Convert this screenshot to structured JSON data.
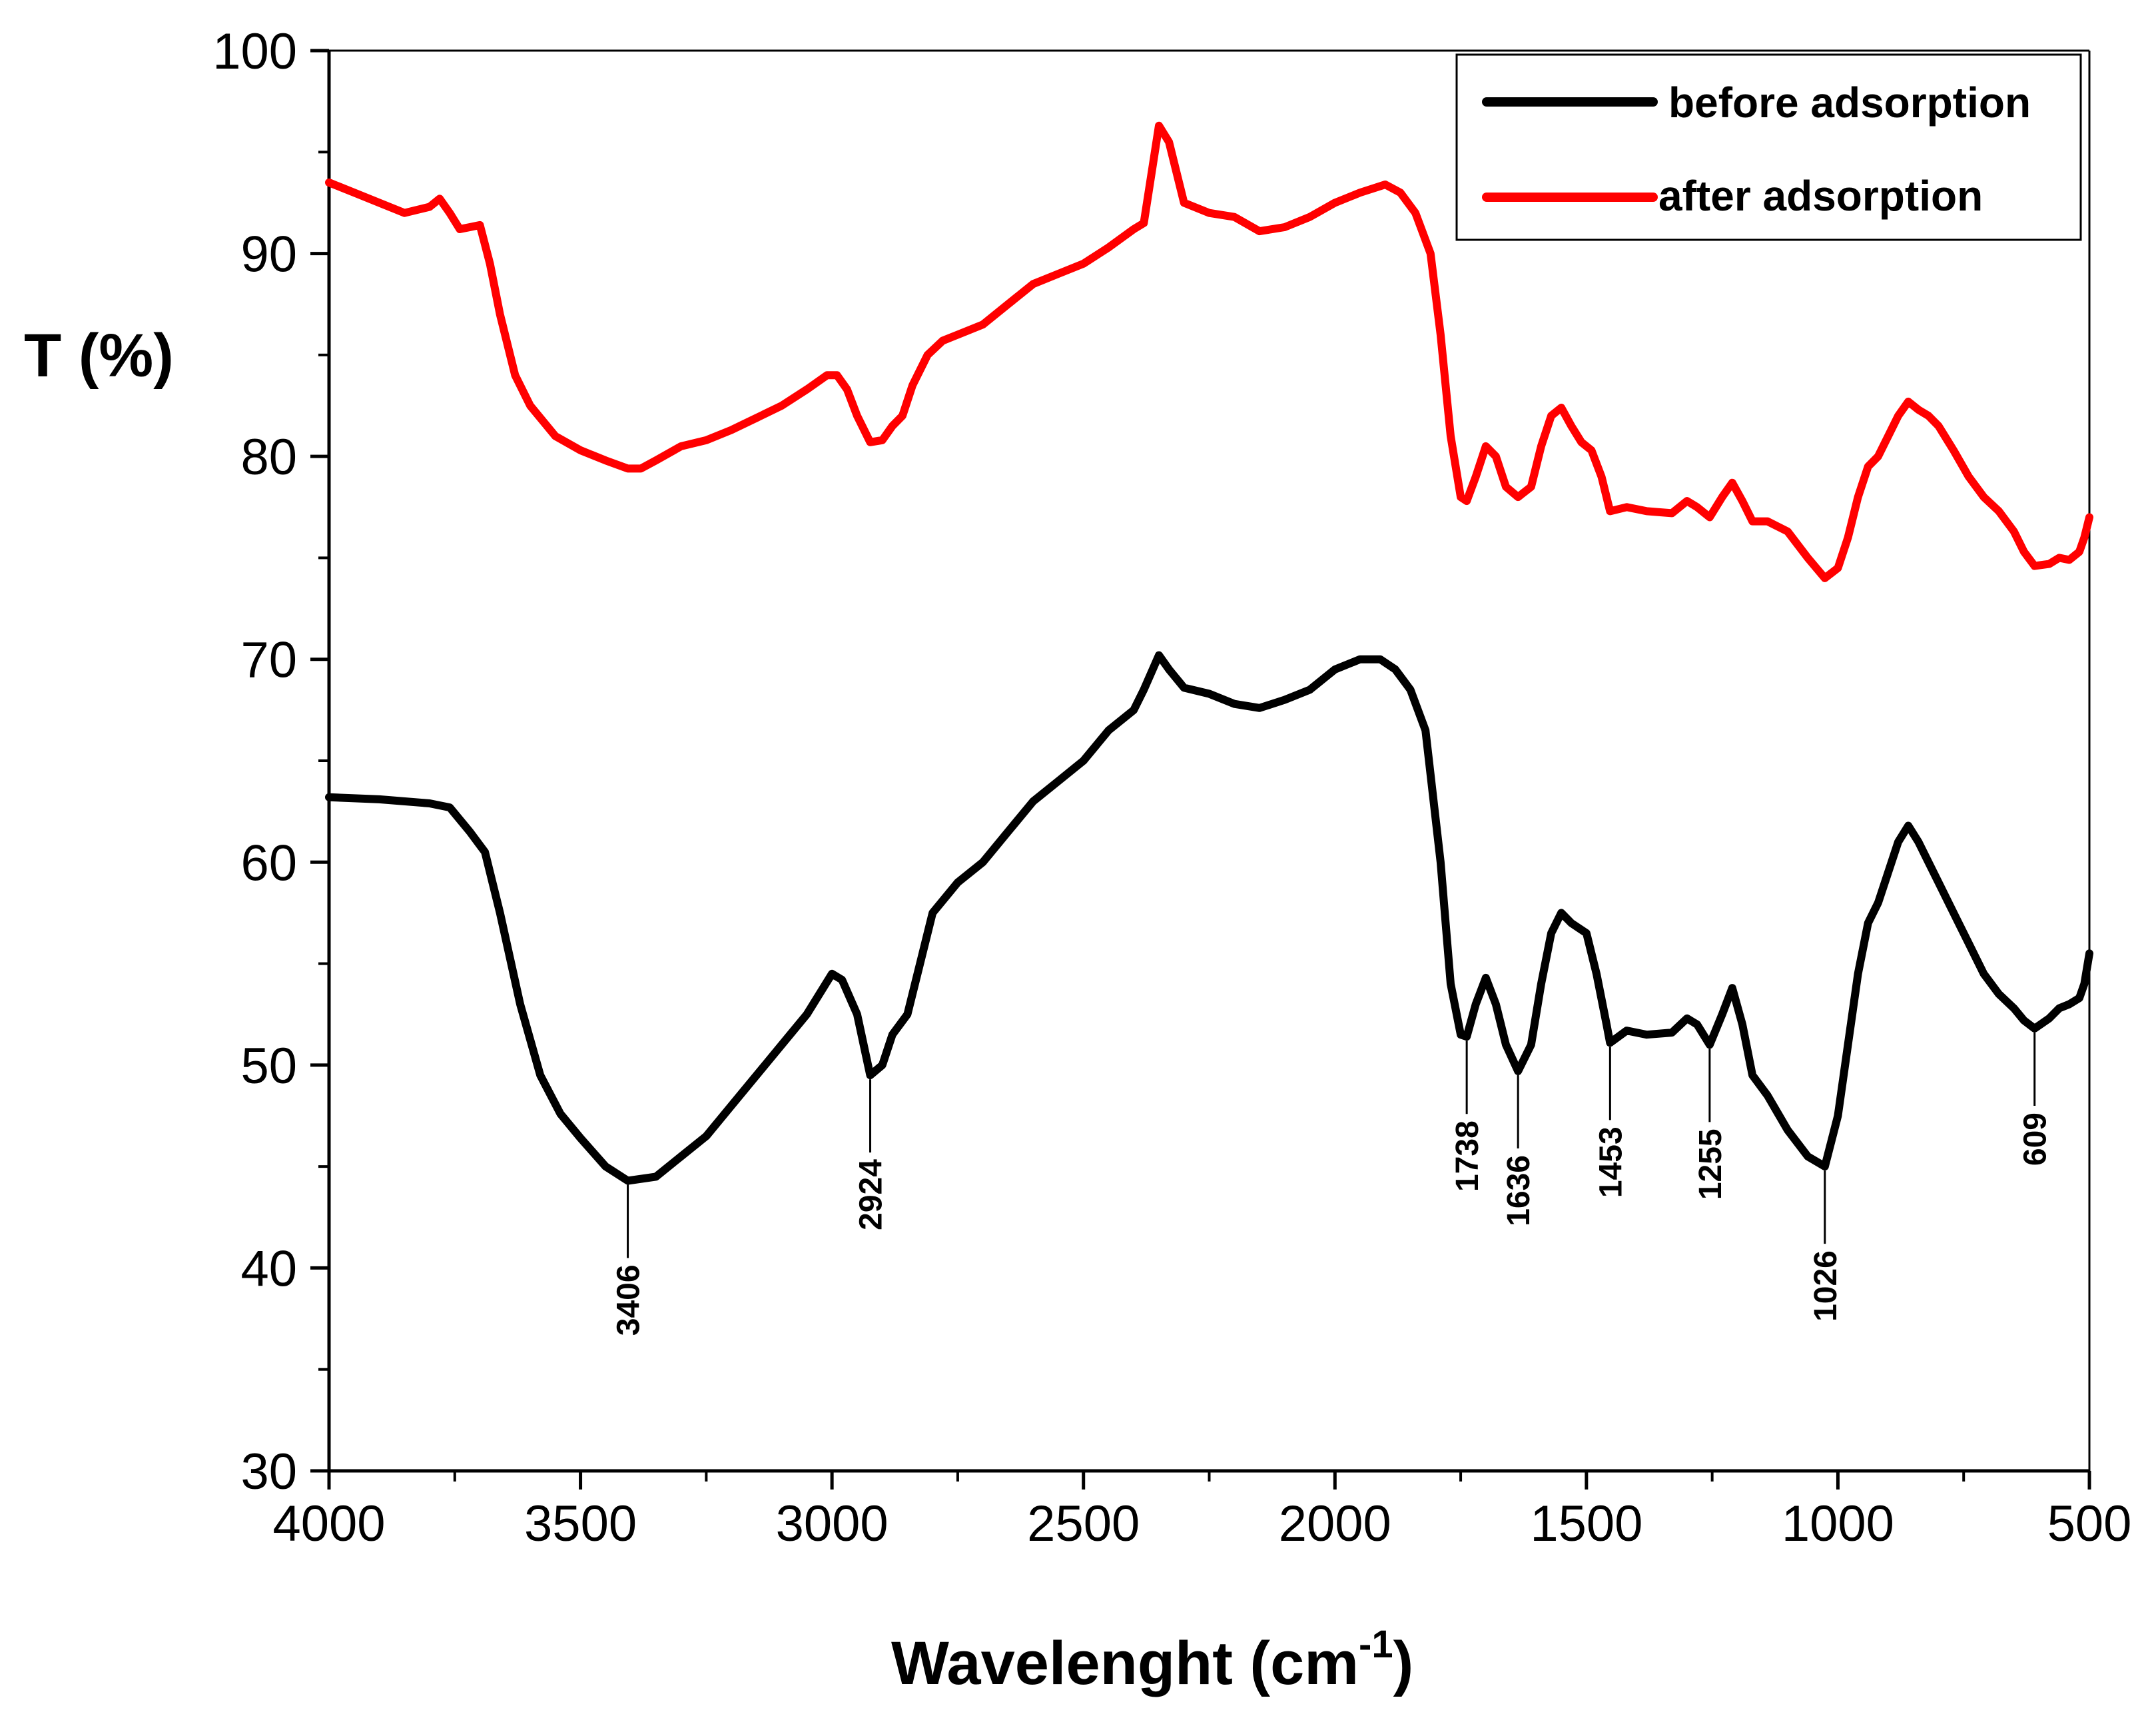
{
  "chart_data": {
    "type": "line",
    "title": "",
    "xlabel": "Wavelenght (cm",
    "xlabel_superscript": "-1",
    "xlabel_close": ")",
    "ylabel": "T (%)",
    "xlim": [
      4000,
      500
    ],
    "ylim": [
      30,
      100
    ],
    "x_ticks": [
      4000,
      3500,
      3000,
      2500,
      2000,
      1500,
      1000,
      500
    ],
    "x_tick_labels": [
      "4000",
      "3500",
      "3000",
      "2500",
      "2000",
      "1500",
      "1000",
      "500"
    ],
    "y_ticks": [
      30,
      40,
      50,
      60,
      70,
      80,
      90,
      100
    ],
    "y_tick_labels": [
      "30",
      "40",
      "50",
      "60",
      "70",
      "80",
      "90",
      "100"
    ],
    "grid": false,
    "legend_position": "top-right",
    "series": [
      {
        "name": "before adsorption",
        "color": "#000000",
        "points": [
          [
            4000,
            63.2
          ],
          [
            3900,
            63.1
          ],
          [
            3800,
            62.9
          ],
          [
            3760,
            62.7
          ],
          [
            3720,
            61.5
          ],
          [
            3690,
            60.5
          ],
          [
            3660,
            57.5
          ],
          [
            3620,
            53.0
          ],
          [
            3580,
            49.5
          ],
          [
            3540,
            47.6
          ],
          [
            3500,
            46.4
          ],
          [
            3450,
            45.0
          ],
          [
            3406,
            44.3
          ],
          [
            3350,
            44.5
          ],
          [
            3300,
            45.5
          ],
          [
            3250,
            46.5
          ],
          [
            3200,
            48.0
          ],
          [
            3150,
            49.5
          ],
          [
            3100,
            51.0
          ],
          [
            3050,
            52.5
          ],
          [
            3000,
            54.5
          ],
          [
            2980,
            54.2
          ],
          [
            2950,
            52.5
          ],
          [
            2924,
            49.5
          ],
          [
            2900,
            50.0
          ],
          [
            2880,
            51.5
          ],
          [
            2850,
            52.5
          ],
          [
            2820,
            55.5
          ],
          [
            2800,
            57.5
          ],
          [
            2750,
            59.0
          ],
          [
            2700,
            60.0
          ],
          [
            2650,
            61.5
          ],
          [
            2600,
            63.0
          ],
          [
            2550,
            64.0
          ],
          [
            2500,
            65.0
          ],
          [
            2450,
            66.5
          ],
          [
            2400,
            67.5
          ],
          [
            2380,
            68.5
          ],
          [
            2350,
            70.2
          ],
          [
            2330,
            69.5
          ],
          [
            2300,
            68.6
          ],
          [
            2250,
            68.3
          ],
          [
            2200,
            67.8
          ],
          [
            2150,
            67.6
          ],
          [
            2100,
            68.0
          ],
          [
            2050,
            68.5
          ],
          [
            2000,
            69.5
          ],
          [
            1950,
            70.0
          ],
          [
            1910,
            70.0
          ],
          [
            1880,
            69.5
          ],
          [
            1850,
            68.5
          ],
          [
            1820,
            66.5
          ],
          [
            1790,
            60.0
          ],
          [
            1770,
            54.0
          ],
          [
            1750,
            51.5
          ],
          [
            1738,
            51.4
          ],
          [
            1720,
            53.0
          ],
          [
            1700,
            54.3
          ],
          [
            1680,
            53.0
          ],
          [
            1660,
            51.0
          ],
          [
            1636,
            49.7
          ],
          [
            1610,
            51.0
          ],
          [
            1590,
            54.0
          ],
          [
            1570,
            56.5
          ],
          [
            1550,
            57.5
          ],
          [
            1530,
            57.0
          ],
          [
            1500,
            56.5
          ],
          [
            1480,
            54.5
          ],
          [
            1460,
            52.0
          ],
          [
            1453,
            51.1
          ],
          [
            1420,
            51.7
          ],
          [
            1380,
            51.5
          ],
          [
            1330,
            51.6
          ],
          [
            1300,
            52.3
          ],
          [
            1280,
            52.0
          ],
          [
            1255,
            51.0
          ],
          [
            1230,
            52.5
          ],
          [
            1210,
            53.8
          ],
          [
            1190,
            52.0
          ],
          [
            1170,
            49.5
          ],
          [
            1140,
            48.5
          ],
          [
            1100,
            46.8
          ],
          [
            1060,
            45.5
          ],
          [
            1026,
            45.0
          ],
          [
            1000,
            47.5
          ],
          [
            980,
            51.0
          ],
          [
            960,
            54.5
          ],
          [
            940,
            57.0
          ],
          [
            920,
            58.0
          ],
          [
            900,
            59.5
          ],
          [
            880,
            61.0
          ],
          [
            860,
            61.8
          ],
          [
            840,
            61.0
          ],
          [
            820,
            60.0
          ],
          [
            800,
            59.0
          ],
          [
            770,
            57.5
          ],
          [
            740,
            56.0
          ],
          [
            710,
            54.5
          ],
          [
            680,
            53.5
          ],
          [
            650,
            52.8
          ],
          [
            630,
            52.2
          ],
          [
            609,
            51.8
          ],
          [
            580,
            52.3
          ],
          [
            560,
            52.8
          ],
          [
            540,
            53.0
          ],
          [
            520,
            53.3
          ],
          [
            510,
            54.0
          ],
          [
            500,
            55.5
          ]
        ]
      },
      {
        "name": "after adsorption",
        "color": "#ff0000",
        "points": [
          [
            4000,
            93.5
          ],
          [
            3950,
            93.0
          ],
          [
            3900,
            92.5
          ],
          [
            3850,
            92.0
          ],
          [
            3800,
            92.3
          ],
          [
            3780,
            92.7
          ],
          [
            3760,
            92.0
          ],
          [
            3740,
            91.2
          ],
          [
            3720,
            91.3
          ],
          [
            3700,
            91.4
          ],
          [
            3680,
            89.5
          ],
          [
            3660,
            87.0
          ],
          [
            3630,
            84.0
          ],
          [
            3600,
            82.5
          ],
          [
            3550,
            81.0
          ],
          [
            3500,
            80.3
          ],
          [
            3450,
            79.8
          ],
          [
            3406,
            79.4
          ],
          [
            3380,
            79.4
          ],
          [
            3350,
            79.8
          ],
          [
            3300,
            80.5
          ],
          [
            3250,
            80.8
          ],
          [
            3200,
            81.3
          ],
          [
            3150,
            81.9
          ],
          [
            3100,
            82.5
          ],
          [
            3050,
            83.3
          ],
          [
            3010,
            84.0
          ],
          [
            2990,
            84.0
          ],
          [
            2970,
            83.3
          ],
          [
            2950,
            82.0
          ],
          [
            2924,
            80.7
          ],
          [
            2900,
            80.8
          ],
          [
            2880,
            81.5
          ],
          [
            2860,
            82.0
          ],
          [
            2840,
            83.5
          ],
          [
            2810,
            85.0
          ],
          [
            2780,
            85.7
          ],
          [
            2750,
            86.0
          ],
          [
            2700,
            86.5
          ],
          [
            2650,
            87.5
          ],
          [
            2600,
            88.5
          ],
          [
            2550,
            89.0
          ],
          [
            2500,
            89.5
          ],
          [
            2450,
            90.3
          ],
          [
            2400,
            91.2
          ],
          [
            2380,
            91.5
          ],
          [
            2350,
            96.3
          ],
          [
            2330,
            95.5
          ],
          [
            2300,
            92.5
          ],
          [
            2250,
            92.0
          ],
          [
            2200,
            91.8
          ],
          [
            2150,
            91.1
          ],
          [
            2100,
            91.3
          ],
          [
            2050,
            91.8
          ],
          [
            2000,
            92.5
          ],
          [
            1950,
            93.0
          ],
          [
            1900,
            93.4
          ],
          [
            1870,
            93.0
          ],
          [
            1840,
            92.0
          ],
          [
            1810,
            90.0
          ],
          [
            1790,
            86.0
          ],
          [
            1770,
            81.0
          ],
          [
            1750,
            78.0
          ],
          [
            1738,
            77.8
          ],
          [
            1720,
            79.0
          ],
          [
            1700,
            80.5
          ],
          [
            1680,
            80.0
          ],
          [
            1660,
            78.5
          ],
          [
            1636,
            78.0
          ],
          [
            1610,
            78.5
          ],
          [
            1590,
            80.5
          ],
          [
            1570,
            82.0
          ],
          [
            1550,
            82.4
          ],
          [
            1530,
            81.5
          ],
          [
            1510,
            80.7
          ],
          [
            1490,
            80.3
          ],
          [
            1470,
            79.0
          ],
          [
            1453,
            77.3
          ],
          [
            1420,
            77.5
          ],
          [
            1380,
            77.3
          ],
          [
            1330,
            77.2
          ],
          [
            1300,
            77.8
          ],
          [
            1280,
            77.5
          ],
          [
            1255,
            77.0
          ],
          [
            1230,
            78.0
          ],
          [
            1210,
            78.7
          ],
          [
            1190,
            77.8
          ],
          [
            1170,
            76.8
          ],
          [
            1140,
            76.8
          ],
          [
            1100,
            76.3
          ],
          [
            1060,
            75.0
          ],
          [
            1026,
            74.0
          ],
          [
            1000,
            74.5
          ],
          [
            980,
            76.0
          ],
          [
            960,
            78.0
          ],
          [
            940,
            79.5
          ],
          [
            920,
            80.0
          ],
          [
            900,
            81.0
          ],
          [
            880,
            82.0
          ],
          [
            860,
            82.7
          ],
          [
            840,
            82.3
          ],
          [
            820,
            82.0
          ],
          [
            800,
            81.5
          ],
          [
            770,
            80.3
          ],
          [
            740,
            79.0
          ],
          [
            710,
            78.0
          ],
          [
            680,
            77.3
          ],
          [
            650,
            76.3
          ],
          [
            630,
            75.3
          ],
          [
            609,
            74.6
          ],
          [
            580,
            74.7
          ],
          [
            560,
            75.0
          ],
          [
            540,
            74.9
          ],
          [
            520,
            75.3
          ],
          [
            510,
            76.0
          ],
          [
            500,
            77.0
          ]
        ]
      }
    ],
    "annotations": [
      {
        "label": "3406",
        "x": 3406,
        "y": 44.3
      },
      {
        "label": "2924",
        "x": 2924,
        "y": 49.5
      },
      {
        "label": "1738",
        "x": 1738,
        "y": 51.4
      },
      {
        "label": "1636",
        "x": 1636,
        "y": 49.7
      },
      {
        "label": "1453",
        "x": 1453,
        "y": 51.1
      },
      {
        "label": "1255",
        "x": 1255,
        "y": 51.0
      },
      {
        "label": "1026",
        "x": 1026,
        "y": 45.0
      },
      {
        "label": "609",
        "x": 609,
        "y": 51.8
      }
    ]
  }
}
